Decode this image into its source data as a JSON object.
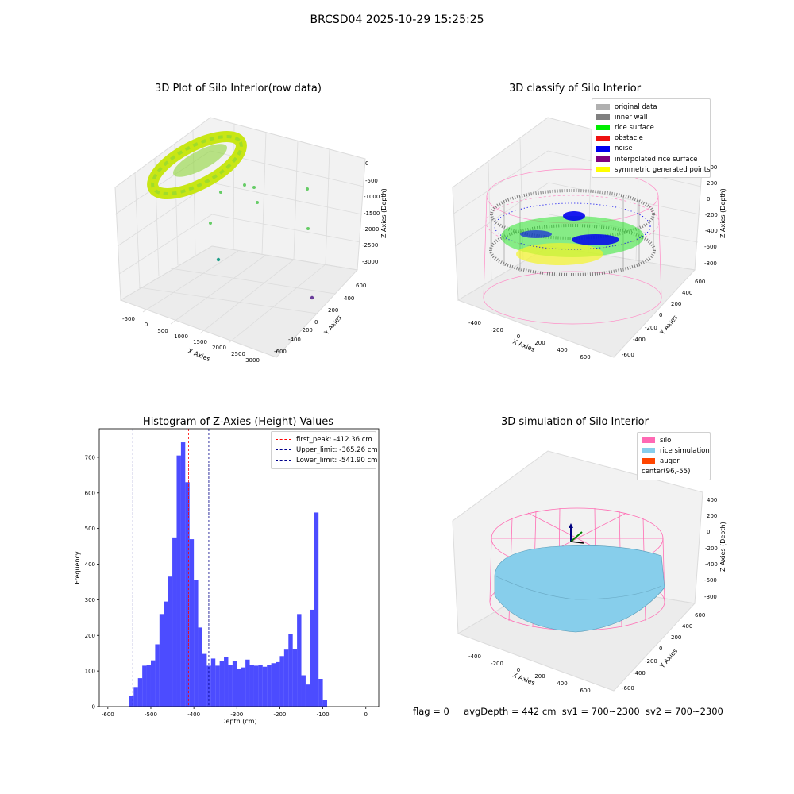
{
  "suptitle": "BRCSD04 2025-10-29 15:25:25",
  "panels": {
    "raw": {
      "title": "3D Plot of Silo Interior(row data)",
      "xlabel": "X Axies",
      "ylabel": "Y Axies",
      "zlabel": "Z Axies (Depth)",
      "xticks": [
        "-500",
        "0",
        "500",
        "1000",
        "1500",
        "2000",
        "2500",
        "3000"
      ],
      "yticks": [
        "600",
        "400",
        "200",
        "0",
        "-200",
        "-400",
        "-600"
      ],
      "zticks": [
        "0",
        "-500",
        "-1000",
        "-1500",
        "-2000",
        "-2500",
        "-3000"
      ]
    },
    "classify": {
      "title": "3D classify of Silo Interior",
      "xlabel": "X Axies",
      "ylabel": "Y Axies",
      "zlabel": "Z Axies (Depth)",
      "xticks": [
        "-400",
        "-200",
        "0",
        "200",
        "400",
        "600"
      ],
      "yticks": [
        "600",
        "400",
        "200",
        "0",
        "-200",
        "-400",
        "-600"
      ],
      "zticks": [
        "400",
        "200",
        "0",
        "-200",
        "-400",
        "-600",
        "-800"
      ],
      "legend": [
        {
          "label": "original data",
          "color": "#b0b0b0"
        },
        {
          "label": "inner wall",
          "color": "#808080"
        },
        {
          "label": "rice surface",
          "color": "#00ee00"
        },
        {
          "label": "obstacle",
          "color": "#ee1111"
        },
        {
          "label": "noise",
          "color": "#0000ee"
        },
        {
          "label": "interpolated rice surface",
          "color": "#800080"
        },
        {
          "label": "symmetric generated points",
          "color": "#ffff00"
        }
      ]
    },
    "simulation": {
      "title": "3D simulation of Silo Interior",
      "xlabel": "X Axies",
      "ylabel": "Y Axies",
      "zlabel": "Z Axies (Depth)",
      "xticks": [
        "-400",
        "-200",
        "0",
        "200",
        "400",
        "600"
      ],
      "yticks": [
        "600",
        "400",
        "200",
        "0",
        "-200",
        "-400",
        "-600"
      ],
      "zticks": [
        "400",
        "200",
        "0",
        "-200",
        "-400",
        "-600",
        "-800"
      ],
      "legend": [
        {
          "label": "silo",
          "color": "#ff69b4"
        },
        {
          "label": "rice simulation",
          "color": "#87ceeb"
        },
        {
          "label": "auger",
          "color": "#ff4500"
        },
        {
          "label": "center(96,-55)",
          "color": ""
        }
      ]
    }
  },
  "chart_data": {
    "type": "bar",
    "title": "Histogram of Z-Axies (Height) Values",
    "xlabel": "Depth (cm)",
    "ylabel": "Frequency",
    "xlim": [
      -620,
      30
    ],
    "ylim": [
      0,
      780
    ],
    "xticks": [
      -600,
      -500,
      -400,
      -300,
      -200,
      -100,
      0
    ],
    "yticks": [
      0,
      100,
      200,
      300,
      400,
      500,
      600,
      700
    ],
    "bin_start": -550,
    "bin_width": 10,
    "values": [
      30,
      55,
      80,
      115,
      118,
      130,
      175,
      260,
      295,
      365,
      475,
      705,
      742,
      630,
      470,
      355,
      222,
      148,
      115,
      135,
      115,
      128,
      140,
      117,
      127,
      107,
      110,
      132,
      118,
      115,
      118,
      112,
      116,
      122,
      125,
      142,
      160,
      205,
      162,
      260,
      88,
      62,
      272,
      545,
      78,
      18
    ],
    "color": "#0000ff",
    "legend": [
      {
        "label": "first_peak: -412.36 cm",
        "value": -412.36,
        "color": "#ff0000"
      },
      {
        "label": "Upper_limit: -365.26 cm",
        "value": -365.26,
        "color": "#00008b"
      },
      {
        "label": "Lower_limit: -541.90 cm",
        "value": -541.9,
        "color": "#00008b"
      }
    ]
  },
  "status": {
    "flag": "flag = 0",
    "avg": "avgDepth = 442 cm",
    "sv1": "sv1 = 700~2300",
    "sv2": "sv2 = 700~2300"
  }
}
